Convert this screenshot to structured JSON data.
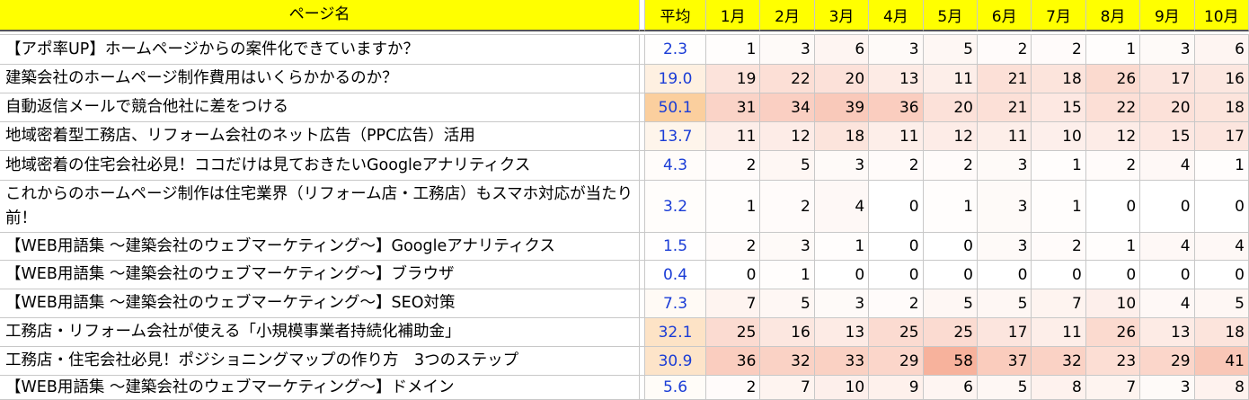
{
  "header": {
    "page_name": "ページ名",
    "avg": "平均",
    "months": [
      "1月",
      "2月",
      "3月",
      "4月",
      "5月",
      "6月",
      "7月",
      "8月",
      "9月",
      "10月"
    ]
  },
  "heat_colors": {
    "min": "#ffffff",
    "max": "#f7b29c",
    "avg_min": "#ffffff",
    "avg_max": "#fbcf9e",
    "avg_text": "#1a3cd6",
    "header_bg": "#ffff00"
  },
  "rows": [
    {
      "name": "【アポ率UP】ホームページからの案件化できていますか？",
      "avg": "2.3",
      "values": [
        1,
        3,
        6,
        3,
        5,
        2,
        2,
        1,
        3,
        6
      ]
    },
    {
      "name": "建築会社のホームページ制作費用はいくらかかるのか？",
      "avg": "19.0",
      "values": [
        19,
        22,
        20,
        13,
        11,
        21,
        18,
        26,
        17,
        16
      ]
    },
    {
      "name": "自動返信メールで競合他社に差をつける",
      "avg": "50.1",
      "values": [
        31,
        34,
        39,
        36,
        20,
        21,
        15,
        22,
        20,
        18
      ]
    },
    {
      "name": "地域密着型工務店、リフォーム会社のネット広告（PPC広告）活用",
      "avg": "13.7",
      "values": [
        11,
        12,
        18,
        11,
        12,
        11,
        10,
        12,
        15,
        17
      ]
    },
    {
      "name": "地域密着の住宅会社必見！ココだけは見ておきたいGoogleアナリティクス",
      "avg": "4.3",
      "values": [
        2,
        5,
        3,
        2,
        2,
        3,
        1,
        2,
        4,
        1
      ]
    },
    {
      "name": "これからのホームページ制作は住宅業界（リフォーム店・工務店）もスマホ対応が当たり前！",
      "avg": "3.2",
      "values": [
        1,
        2,
        4,
        0,
        1,
        3,
        1,
        0,
        0,
        0
      ]
    },
    {
      "name": "【WEB用語集 ～建築会社のウェブマーケティング～】Googleアナリティクス",
      "avg": "1.5",
      "values": [
        2,
        3,
        1,
        0,
        0,
        3,
        2,
        1,
        4,
        4
      ]
    },
    {
      "name": "【WEB用語集 ～建築会社のウェブマーケティング～】ブラウザ",
      "avg": "0.4",
      "values": [
        0,
        1,
        0,
        0,
        0,
        0,
        0,
        0,
        0,
        0
      ]
    },
    {
      "name": "【WEB用語集 ～建築会社のウェブマーケティング～】SEO対策",
      "avg": "7.3",
      "values": [
        7,
        5,
        3,
        2,
        5,
        5,
        7,
        10,
        4,
        5
      ]
    },
    {
      "name": "工務店・リフォーム会社が使える「小規模事業者持続化補助金」",
      "avg": "32.1",
      "values": [
        25,
        16,
        13,
        25,
        25,
        17,
        11,
        26,
        13,
        18
      ]
    },
    {
      "name": "工務店・住宅会社必見！ポジショニングマップの作り方　3つのステップ",
      "avg": "30.9",
      "values": [
        36,
        32,
        33,
        29,
        58,
        37,
        32,
        23,
        29,
        41
      ]
    },
    {
      "name": "【WEB用語集 ～建築会社のウェブマーケティング～】ドメイン",
      "avg": "5.6",
      "values": [
        2,
        7,
        10,
        9,
        6,
        5,
        8,
        7,
        3,
        8
      ]
    }
  ]
}
